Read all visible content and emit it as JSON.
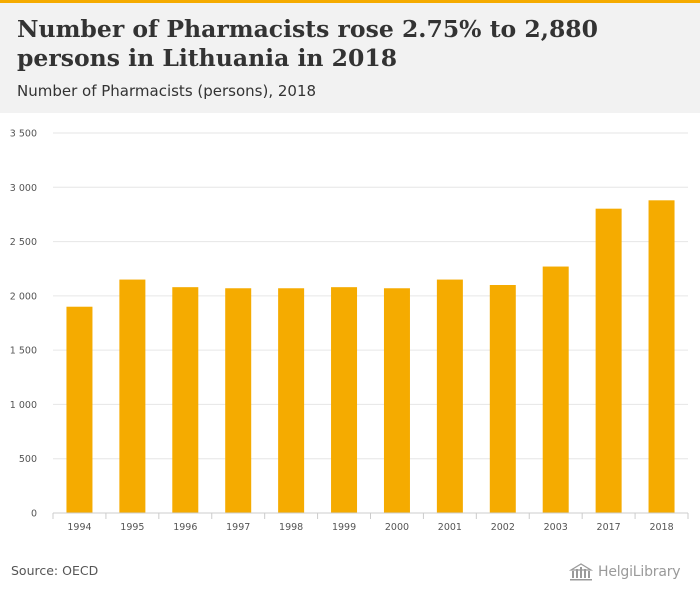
{
  "header": {
    "title": "Number of Pharmacists rose 2.75% to 2,880 persons in Lithuania in 2018",
    "subtitle": "Number of Pharmacists (persons), 2018"
  },
  "footer": {
    "source": "Source: OECD",
    "logo_text": "HelgiLibrary"
  },
  "colors": {
    "bar": "#f5ab00",
    "accent_strip": "#f5ab00",
    "header_bg": "#f2f2f2",
    "gridline": "#e6e6e6",
    "axis_text": "#555555"
  },
  "chart_data": {
    "type": "bar",
    "categories": [
      "1994",
      "1995",
      "1996",
      "1997",
      "1998",
      "1999",
      "2000",
      "2001",
      "2002",
      "2003",
      "2017",
      "2018"
    ],
    "values": [
      1900,
      2150,
      2080,
      2070,
      2070,
      2080,
      2070,
      2150,
      2100,
      2270,
      2803,
      2880
    ],
    "ylim": [
      0,
      3500
    ],
    "yticks": [
      0,
      500,
      1000,
      1500,
      2000,
      2500,
      3000,
      3500
    ],
    "ytick_labels": [
      "0",
      "500",
      "1 000",
      "1 500",
      "2 000",
      "2 500",
      "3 000",
      "3 500"
    ],
    "grid": true,
    "legend": "none"
  }
}
